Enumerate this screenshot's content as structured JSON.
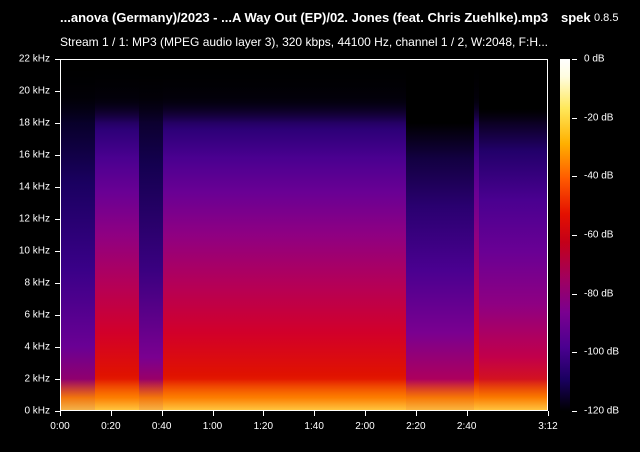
{
  "header": {
    "file_title": "...anova (Germany)/2023 - ...A Way Out (EP)/02. Jones (feat. Chris Zuehlke).mp3",
    "app_name": "spek",
    "app_version": "0.8.5",
    "stream_info": "Stream 1 / 1: MP3 (MPEG audio layer 3), 320 kbps, 44100 Hz, channel 1 / 2, W:2048, F:H..."
  },
  "spectrogram": {
    "freq_labels": [
      "22 kHz",
      "20 kHz",
      "18 kHz",
      "16 kHz",
      "14 kHz",
      "12 kHz",
      "10 kHz",
      "8 kHz",
      "6 kHz",
      "4 kHz",
      "2 kHz",
      "0 kHz"
    ],
    "time_labels": [
      "0:00",
      "0:20",
      "0:40",
      "1:00",
      "1:20",
      "1:40",
      "2:00",
      "2:20",
      "2:40",
      "3:12"
    ],
    "colorbar_labels": [
      "0 dB",
      "-20 dB",
      "-40 dB",
      "-60 dB",
      "-80 dB",
      "-100 dB",
      "-120 dB"
    ]
  }
}
